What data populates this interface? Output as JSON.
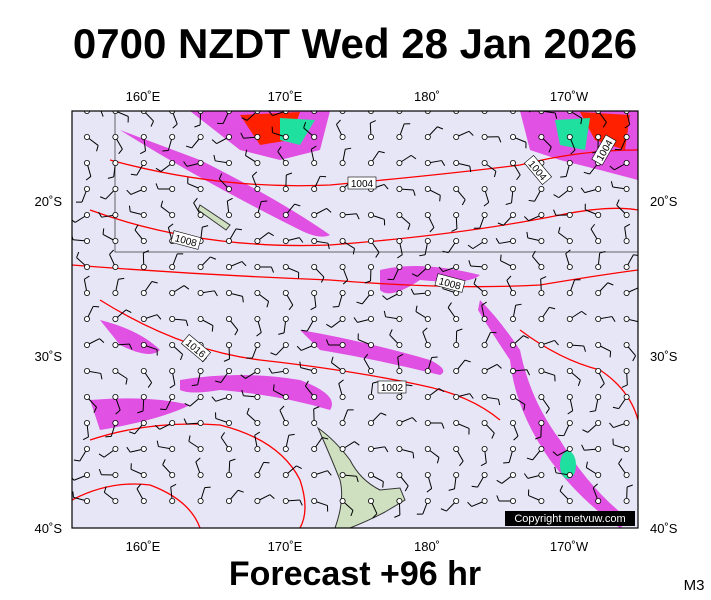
{
  "header": {
    "title": "0700 NZDT Wed 28 Jan 2026"
  },
  "map": {
    "lon_labels": [
      "160˚E",
      "170˚E",
      "180˚",
      "170˚W"
    ],
    "lat_labels": [
      "20˚S",
      "30˚S",
      "40˚S"
    ],
    "isobar_labels": [
      "1004",
      "1004",
      "1004",
      "1008",
      "1008",
      "1016",
      "1002"
    ],
    "copyright": "Copyright metvuw.com"
  },
  "footer": {
    "title": "Forecast +96 hr",
    "model": "M3"
  }
}
